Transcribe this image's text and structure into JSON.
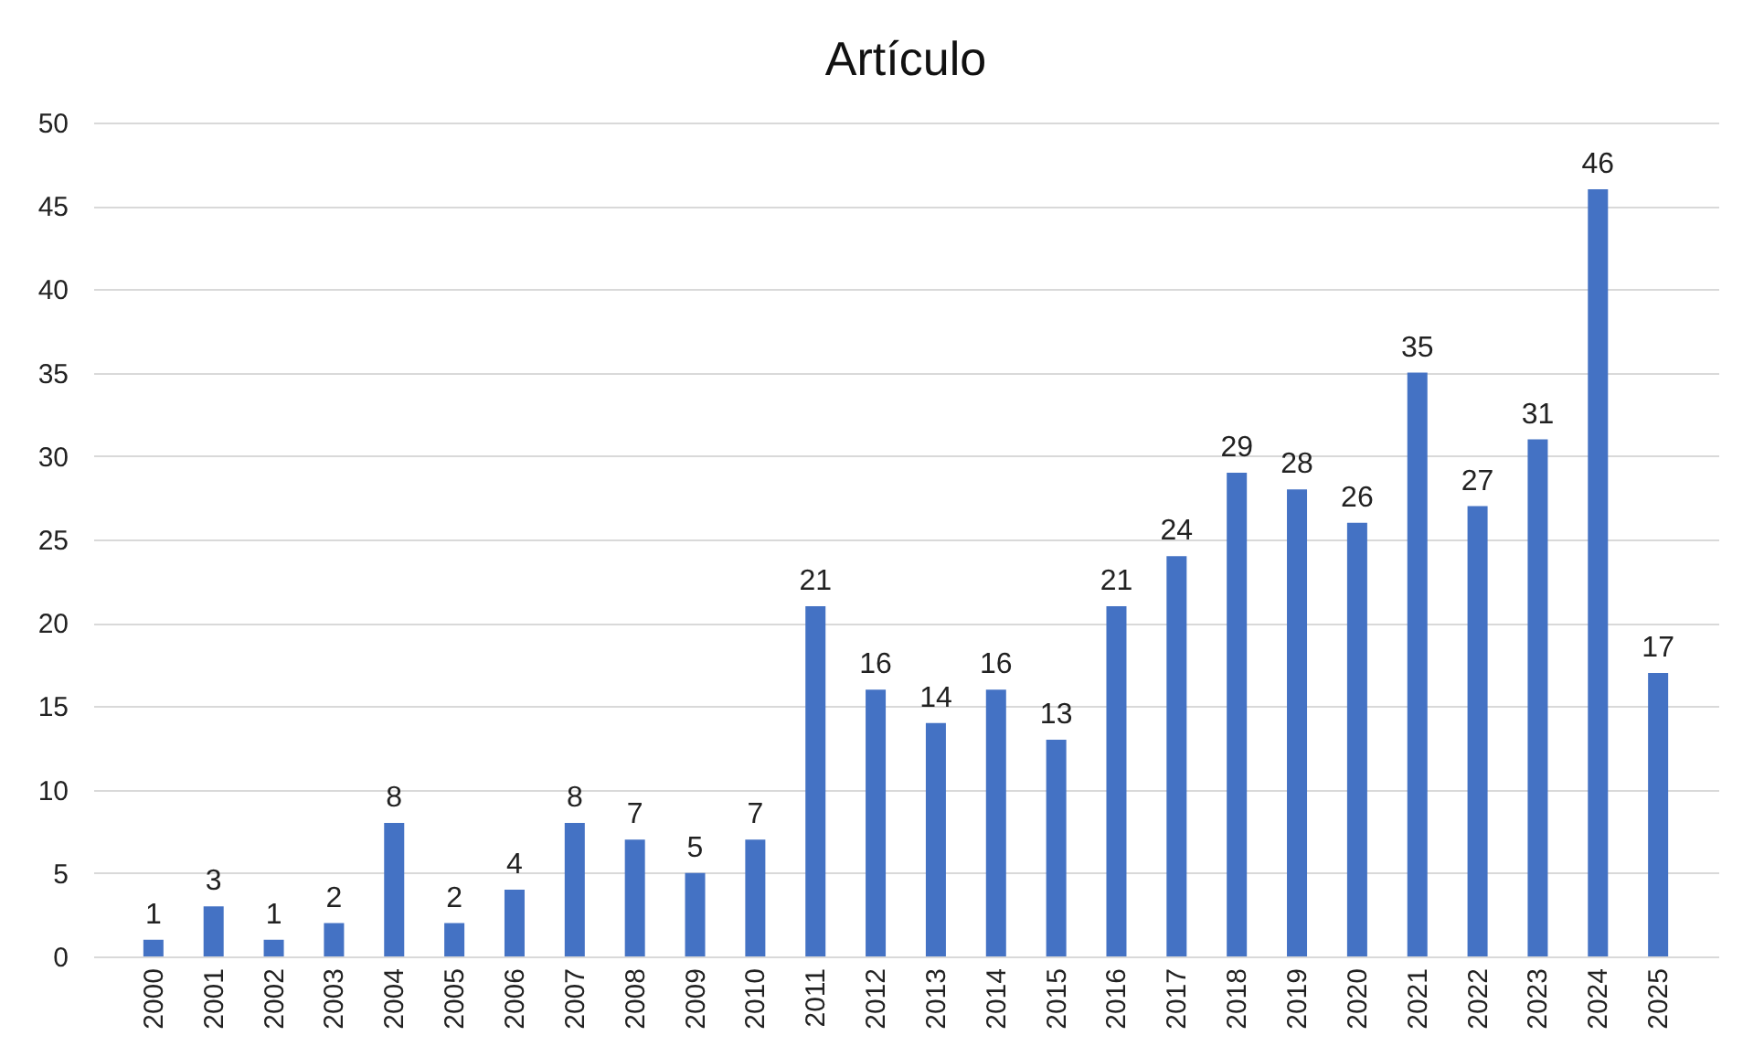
{
  "chart_data": {
    "type": "bar",
    "title": "Artículo",
    "categories": [
      "2000",
      "2001",
      "2002",
      "2003",
      "2004",
      "2005",
      "2006",
      "2007",
      "2008",
      "2009",
      "2010",
      "2011",
      "2012",
      "2013",
      "2014",
      "2015",
      "2016",
      "2017",
      "2018",
      "2019",
      "2020",
      "2021",
      "2022",
      "2023",
      "2024",
      "2025"
    ],
    "values": [
      1,
      3,
      1,
      2,
      8,
      2,
      4,
      8,
      7,
      5,
      7,
      21,
      16,
      14,
      16,
      13,
      21,
      24,
      29,
      28,
      26,
      35,
      27,
      31,
      46,
      17
    ],
    "color": "#4472c4",
    "ylim": [
      0,
      50
    ],
    "yticks": [
      0,
      5,
      10,
      15,
      20,
      25,
      30,
      35,
      40,
      45,
      50
    ],
    "grid": "y",
    "data_labels": true
  }
}
